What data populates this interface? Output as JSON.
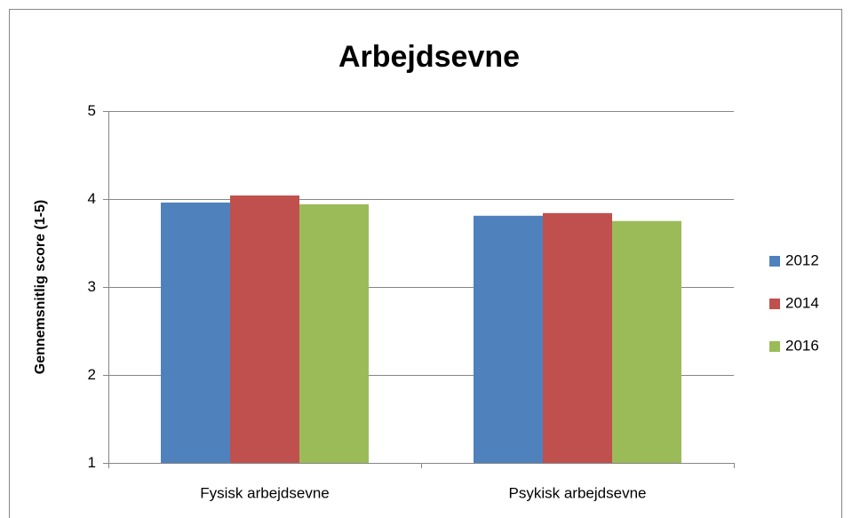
{
  "chart_data": {
    "type": "bar",
    "title": "Arbejdsevne",
    "y_label": "Gennemsnitlig score (1-5)",
    "categories": [
      "Fysisk arbejdsevne",
      "Psykisk arbejdsevne"
    ],
    "series": [
      {
        "name": "2012",
        "color": "#4f81bd",
        "values": [
          3.96,
          3.81
        ]
      },
      {
        "name": "2014",
        "color": "#c0504d",
        "values": [
          4.04,
          3.84
        ]
      },
      {
        "name": "2016",
        "color": "#9bbb59",
        "values": [
          3.94,
          3.75
        ]
      }
    ],
    "ylim": [
      1,
      5
    ],
    "yticks": [
      1,
      2,
      3,
      4,
      5
    ],
    "grid": true,
    "legend": "right"
  }
}
